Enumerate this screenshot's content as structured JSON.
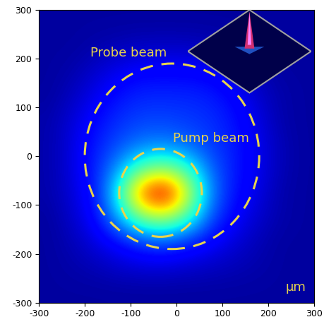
{
  "chart_data": {
    "type": "heatmap",
    "xlim": [
      -300,
      300
    ],
    "ylim": [
      -300,
      300
    ],
    "xticks": [
      -300,
      -200,
      -100,
      0,
      100,
      200,
      300
    ],
    "yticks": [
      -300,
      -200,
      -100,
      0,
      100,
      200,
      300
    ],
    "xlabel": "μm",
    "color": "jet",
    "clim": [
      0,
      1
    ],
    "cells": [
      [
        0.03,
        0.03,
        0.03,
        0.03,
        0.03,
        0.03,
        0.03,
        0.03,
        0.03,
        0.03,
        0.03,
        0.03
      ],
      [
        0.03,
        0.03,
        0.04,
        0.05,
        0.06,
        0.06,
        0.06,
        0.05,
        0.04,
        0.03,
        0.03,
        0.03
      ],
      [
        0.03,
        0.04,
        0.07,
        0.1,
        0.12,
        0.12,
        0.12,
        0.11,
        0.08,
        0.05,
        0.03,
        0.03
      ],
      [
        0.03,
        0.06,
        0.1,
        0.14,
        0.16,
        0.16,
        0.16,
        0.15,
        0.12,
        0.07,
        0.04,
        0.03
      ],
      [
        0.04,
        0.08,
        0.13,
        0.17,
        0.19,
        0.19,
        0.18,
        0.17,
        0.14,
        0.09,
        0.04,
        0.03
      ],
      [
        0.04,
        0.09,
        0.15,
        0.2,
        0.24,
        0.25,
        0.22,
        0.18,
        0.15,
        0.1,
        0.05,
        0.03
      ],
      [
        0.04,
        0.09,
        0.16,
        0.28,
        0.45,
        0.5,
        0.4,
        0.22,
        0.15,
        0.1,
        0.05,
        0.03
      ],
      [
        0.04,
        0.08,
        0.15,
        0.4,
        0.85,
        1.0,
        0.6,
        0.25,
        0.14,
        0.09,
        0.04,
        0.03
      ],
      [
        0.03,
        0.07,
        0.13,
        0.3,
        0.5,
        0.55,
        0.42,
        0.2,
        0.12,
        0.07,
        0.04,
        0.03
      ],
      [
        0.03,
        0.05,
        0.09,
        0.13,
        0.18,
        0.2,
        0.16,
        0.12,
        0.08,
        0.05,
        0.03,
        0.03
      ],
      [
        0.03,
        0.04,
        0.05,
        0.07,
        0.08,
        0.08,
        0.07,
        0.06,
        0.05,
        0.04,
        0.03,
        0.03
      ],
      [
        0.03,
        0.03,
        0.03,
        0.03,
        0.03,
        0.03,
        0.03,
        0.03,
        0.03,
        0.03,
        0.03,
        0.03
      ]
    ],
    "circles": [
      {
        "name": "Probe beam",
        "center": [
          -10,
          0
        ],
        "radius": 190
      },
      {
        "name": "Pump beam",
        "center": [
          -35,
          -75
        ],
        "radius": 90
      }
    ],
    "circle_color": "#e8d44d",
    "line_style": "dashed"
  }
}
